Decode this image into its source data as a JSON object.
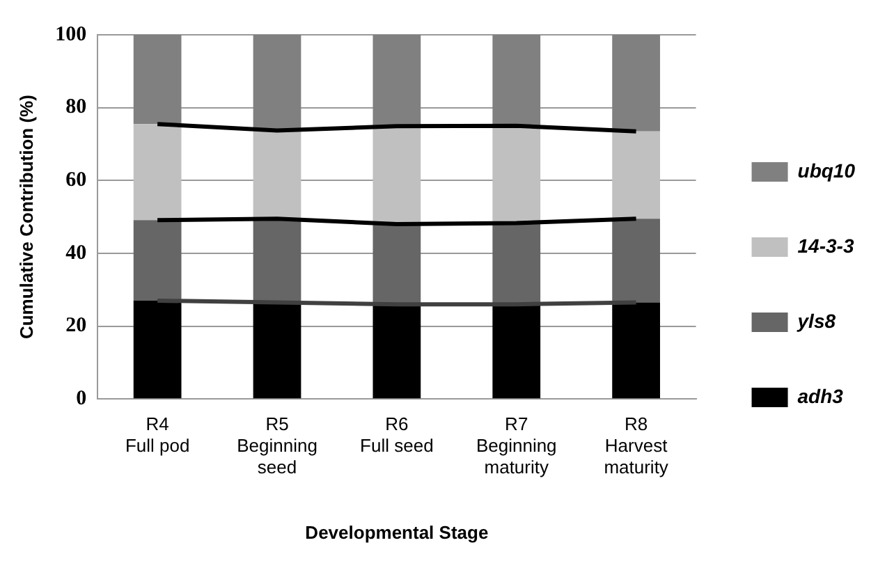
{
  "chart_data": {
    "type": "bar",
    "stacked": true,
    "xlabel": "Developmental Stage",
    "ylabel": "Cumulative Contribution (%)",
    "categories": [
      "R4\nFull pod",
      "R5\nBeginning\nseed",
      "R6\nFull seed",
      "R7\nBeginning\nmaturity",
      "R8\nHarvest\nmaturity"
    ],
    "series": [
      {
        "name": "adh3",
        "color": "#000000",
        "values": [
          27.0,
          26.5,
          26.0,
          26.0,
          26.5
        ]
      },
      {
        "name": "yls8",
        "color": "#666666",
        "values": [
          22.1,
          23.0,
          22.0,
          22.3,
          23.0
        ]
      },
      {
        "name": "14-3-3",
        "color": "#c0c0c0",
        "values": [
          26.4,
          24.2,
          26.9,
          26.7,
          24.0
        ]
      },
      {
        "name": "ubq10",
        "color": "#808080",
        "values": [
          24.5,
          26.3,
          25.1,
          25.0,
          26.5
        ]
      },
      {
        "type": "line",
        "color": "#404040",
        "values": [
          27.0,
          26.5,
          26.0,
          26.0,
          26.5
        ]
      },
      {
        "type": "line",
        "color": "#000000",
        "values": [
          49.1,
          49.5,
          48.0,
          48.3,
          49.5
        ]
      },
      {
        "type": "line",
        "color": "#000000",
        "values": [
          75.5,
          73.7,
          74.9,
          75.0,
          73.5
        ]
      }
    ],
    "ylim": [
      0,
      100
    ],
    "yticks": [
      0,
      20,
      40,
      60,
      80,
      100
    ],
    "grid": "y",
    "legend": "right",
    "marker": "none"
  }
}
